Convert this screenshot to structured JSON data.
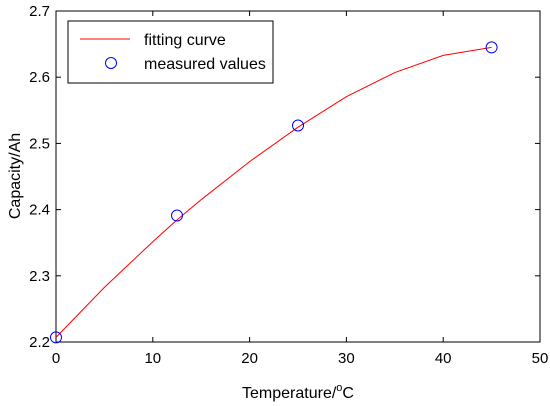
{
  "chart_data": {
    "type": "line",
    "xlabel": "Temperature/",
    "xlabel_sup": "o",
    "xlabel_tail": "C",
    "ylabel": "Capacity/Ah",
    "xlim": [
      0,
      50
    ],
    "ylim": [
      2.2,
      2.7
    ],
    "xticks": [
      "0",
      "10",
      "20",
      "30",
      "40",
      "50"
    ],
    "yticks": [
      "2.2",
      "2.3",
      "2.4",
      "2.5",
      "2.6",
      "2.7"
    ],
    "grid": false,
    "legend_position": "top-left",
    "series": [
      {
        "name": "fitting curve",
        "style": "line",
        "color": "#ff0000",
        "x": [
          0,
          5,
          10,
          12.5,
          15,
          20,
          25,
          30,
          35,
          40,
          45
        ],
        "y": [
          2.207,
          2.2825,
          2.3515,
          2.3845,
          2.415,
          2.4725,
          2.5245,
          2.5705,
          2.607,
          2.633,
          2.645
        ]
      },
      {
        "name": "measured values",
        "style": "marker",
        "marker": "circle",
        "color": "#0000ff",
        "x": [
          0,
          12.5,
          25,
          45
        ],
        "y": [
          2.207,
          2.391,
          2.527,
          2.645
        ]
      }
    ]
  }
}
